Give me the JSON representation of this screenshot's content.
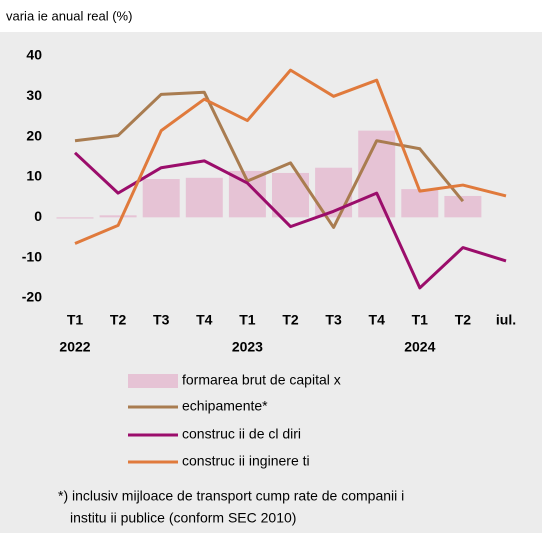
{
  "chart_data": {
    "type": "bar-line",
    "subtitle": "varia ie anual   real   (%)",
    "categories": [
      "T1",
      "T2",
      "T3",
      "T4",
      "T1",
      "T2",
      "T3",
      "T4",
      "T1",
      "T2",
      "iul."
    ],
    "category_groups": [
      "2022",
      null,
      null,
      null,
      "2023",
      null,
      null,
      null,
      "2024",
      null,
      null
    ],
    "series": [
      {
        "name": "formarea brut  de capital   x",
        "kind": "bar",
        "color": "#e6c3d5",
        "values": [
          -0.3,
          0.5,
          9.5,
          9.8,
          11.5,
          11,
          12.3,
          21.5,
          7,
          5.3,
          null
        ]
      },
      {
        "name": "echipamente*",
        "kind": "line",
        "color": "#a97c50",
        "values": [
          19,
          20.3,
          30.5,
          31,
          9,
          13.5,
          -2.5,
          19,
          17,
          4,
          null
        ]
      },
      {
        "name": "construc ii de cl  diri",
        "kind": "line",
        "color": "#9b0d6b",
        "values": [
          16,
          6,
          12.3,
          14,
          8.5,
          -2.3,
          1.5,
          6,
          -17.5,
          -7.5,
          -10.8
        ]
      },
      {
        "name": "construc ii inginere  ti",
        "kind": "line",
        "color": "#e07a3c",
        "values": [
          -6.5,
          -2,
          21.5,
          29.3,
          24,
          36.5,
          30,
          34,
          6.5,
          8,
          5.3
        ]
      }
    ],
    "ylim": [
      -20,
      40
    ],
    "yticks": [
      -20,
      -10,
      0,
      10,
      20,
      30,
      40
    ],
    "footnote": [
      "*) inclusiv mijloace de transport cump  rate de companii   i",
      "institu ii publice (conform SEC 2010)"
    ]
  }
}
